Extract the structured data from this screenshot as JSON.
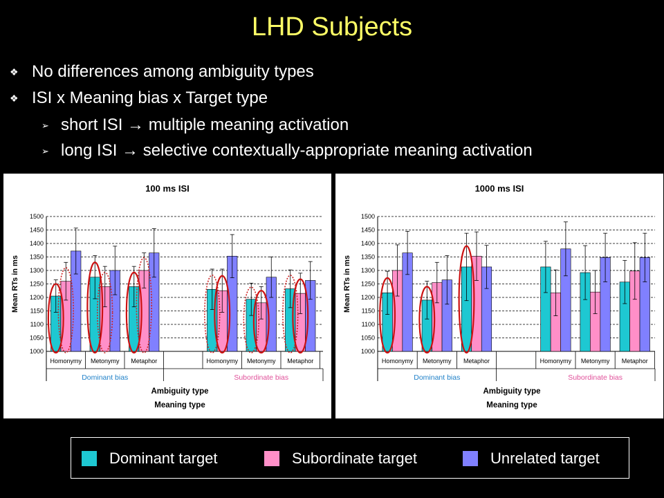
{
  "slide": {
    "title": "LHD Subjects",
    "bullets": [
      "No differences among ambiguity types",
      "ISI x Meaning bias x Target type"
    ],
    "sub_bullets": [
      "short ISI → multiple meaning activation",
      "long ISI → selective contextually-appropriate meaning activation"
    ]
  },
  "legend": {
    "items": [
      {
        "label": "Dominant target",
        "color": "#1ec8d2"
      },
      {
        "label": "Subordinate target",
        "color": "#ff8fc8"
      },
      {
        "label": "Unrelated target",
        "color": "#8080ff"
      }
    ]
  },
  "chart_data": [
    {
      "type": "bar",
      "title": "100 ms ISI",
      "ylabel": "Mean RTs in ms",
      "xlabel": "Ambiguity type",
      "xlabel2": "Meaning type",
      "ylim": [
        1000,
        1500
      ],
      "yticks": [
        1000,
        1050,
        1100,
        1150,
        1200,
        1250,
        1300,
        1350,
        1400,
        1450,
        1500
      ],
      "grid": true,
      "categories": [
        "Homonymy",
        "Metonymy",
        "Metaphor",
        "Homonymy",
        "Metonymy",
        "Metaphor"
      ],
      "groups": [
        {
          "label": "Dominant bias",
          "color": "#1f80c8"
        },
        {
          "label": "Subordinate bias",
          "color": "#e0509a"
        }
      ],
      "series": [
        {
          "name": "Dominant target",
          "values": [
            1205,
            1275,
            1240,
            1230,
            1193,
            1232
          ],
          "errors": [
            60,
            80,
            75,
            75,
            60,
            70
          ]
        },
        {
          "name": "Subordinate target",
          "values": [
            1260,
            1240,
            1300,
            1225,
            1180,
            1215
          ],
          "errors": [
            70,
            75,
            65,
            80,
            60,
            75
          ]
        },
        {
          "name": "Unrelated target",
          "values": [
            1372,
            1300,
            1365,
            1353,
            1275,
            1263
          ],
          "errors": [
            85,
            90,
            90,
            80,
            75,
            70
          ]
        }
      ]
    },
    {
      "type": "bar",
      "title": "1000 ms ISI",
      "ylabel": "Mean RTs in ms",
      "xlabel": "Ambiguity type",
      "xlabel2": "Meaning type",
      "ylim": [
        1000,
        1500
      ],
      "yticks": [
        1000,
        1050,
        1100,
        1150,
        1200,
        1250,
        1300,
        1350,
        1400,
        1450,
        1500
      ],
      "grid": true,
      "categories": [
        "Homonymy",
        "Metonymy",
        "Metaphor",
        "Homonymy",
        "Metonymy",
        "Metaphor"
      ],
      "groups": [
        {
          "label": "Dominant bias",
          "color": "#1f80c8"
        },
        {
          "label": "Subordinate bias",
          "color": "#e0509a"
        }
      ],
      "series": [
        {
          "name": "Dominant target",
          "values": [
            1217,
            1190,
            1313,
            1313,
            1292,
            1257
          ],
          "errors": [
            80,
            70,
            125,
            95,
            100,
            80
          ]
        },
        {
          "name": "Subordinate target",
          "values": [
            1300,
            1255,
            1353,
            1217,
            1220,
            1298
          ],
          "errors": [
            95,
            75,
            90,
            85,
            80,
            105
          ]
        },
        {
          "name": "Unrelated target",
          "values": [
            1365,
            1265,
            1313,
            1380,
            1348,
            1348
          ],
          "errors": [
            80,
            90,
            80,
            100,
            90,
            90
          ]
        }
      ]
    }
  ]
}
